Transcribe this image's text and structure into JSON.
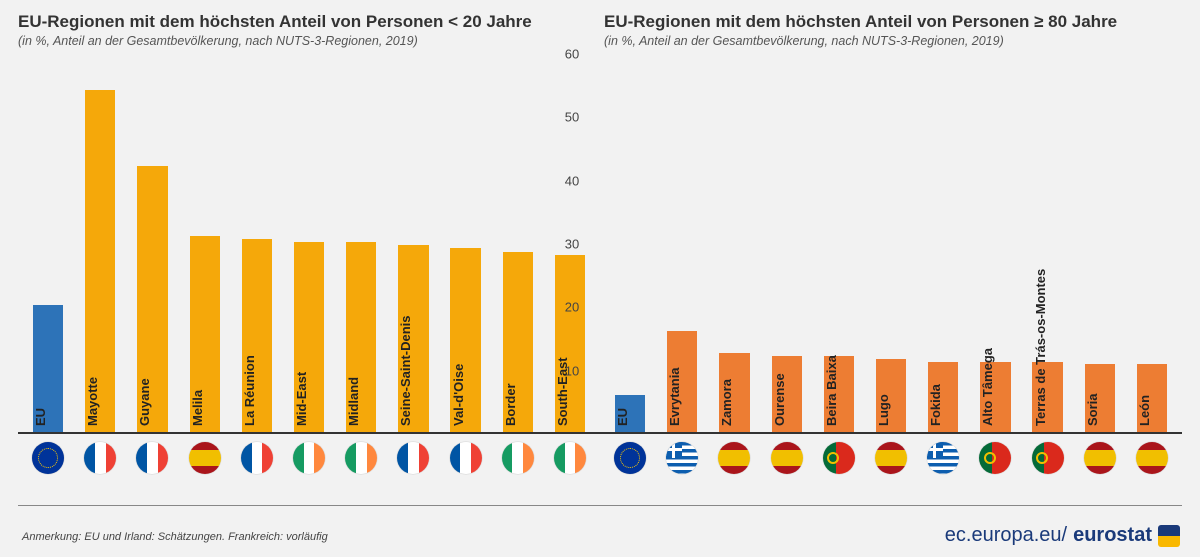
{
  "ylim": [
    0,
    60
  ],
  "ytick_step": 10,
  "bar_width_ratio": 0.58,
  "colors": {
    "eu_bar": "#2d73b8",
    "left_bar": "#f5a80a",
    "right_bar": "#ed7d33",
    "bg": "#f2f2f2",
    "axis": "#333333",
    "text": "#333333",
    "footer_brand": "#1a3a7a"
  },
  "panels": [
    {
      "title": "EU-Regionen mit dem höchsten Anteil von Personen < 20 Jahre",
      "subtitle": "(in %, Anteil an der Gesamtbevölkerung, nach NUTS-3-Regionen, 2019)",
      "bar_color": "#f5a80a",
      "axis_side": "right",
      "items": [
        {
          "label": "EU",
          "value": 20,
          "flag": "eu",
          "is_eu": true
        },
        {
          "label": "Mayotte",
          "value": 54,
          "flag": "fr"
        },
        {
          "label": "Guyane",
          "value": 42,
          "flag": "fr"
        },
        {
          "label": "Melila",
          "value": 31,
          "flag": "es"
        },
        {
          "label": "La Réunion",
          "value": 30.5,
          "flag": "fr"
        },
        {
          "label": "Mid-East",
          "value": 30,
          "flag": "ie"
        },
        {
          "label": "Midland",
          "value": 30,
          "flag": "ie"
        },
        {
          "label": "Seine-Saint-Denis",
          "value": 29.5,
          "flag": "fr"
        },
        {
          "label": "Val-d'Oise",
          "value": 29,
          "flag": "fr"
        },
        {
          "label": "Border",
          "value": 28.5,
          "flag": "ie"
        },
        {
          "label": "South-East",
          "value": 28,
          "flag": "ie"
        }
      ]
    },
    {
      "title": "EU-Regionen mit dem höchsten Anteil von Personen ≥ 80 Jahre",
      "subtitle": "(in %, Anteil an der Gesamtbevölkerung, nach NUTS-3-Regionen, 2019)",
      "bar_color": "#ed7d33",
      "axis_side": "left",
      "items": [
        {
          "label": "EU",
          "value": 5.8,
          "flag": "eu",
          "is_eu": true
        },
        {
          "label": "Evrytania",
          "value": 16,
          "flag": "gr"
        },
        {
          "label": "Zamora",
          "value": 12.5,
          "flag": "es"
        },
        {
          "label": "Ourense",
          "value": 12,
          "flag": "es"
        },
        {
          "label": "Beira Baixa",
          "value": 12,
          "flag": "pt"
        },
        {
          "label": "Lugo",
          "value": 11.5,
          "flag": "es"
        },
        {
          "label": "Fokida",
          "value": 11,
          "flag": "gr"
        },
        {
          "label": "Alto Tâmega",
          "value": 11,
          "flag": "pt"
        },
        {
          "label": "Terras de Trás-os-Montes",
          "value": 11,
          "flag": "pt"
        },
        {
          "label": "Soria",
          "value": 10.8,
          "flag": "es"
        },
        {
          "label": "León",
          "value": 10.8,
          "flag": "es"
        }
      ]
    }
  ],
  "footer_note": "Anmerkung: EU und Irland: Schätzungen. Frankreich: vorläufig",
  "footer_brand_pre": "ec.europa.eu/",
  "footer_brand_bold": "eurostat"
}
